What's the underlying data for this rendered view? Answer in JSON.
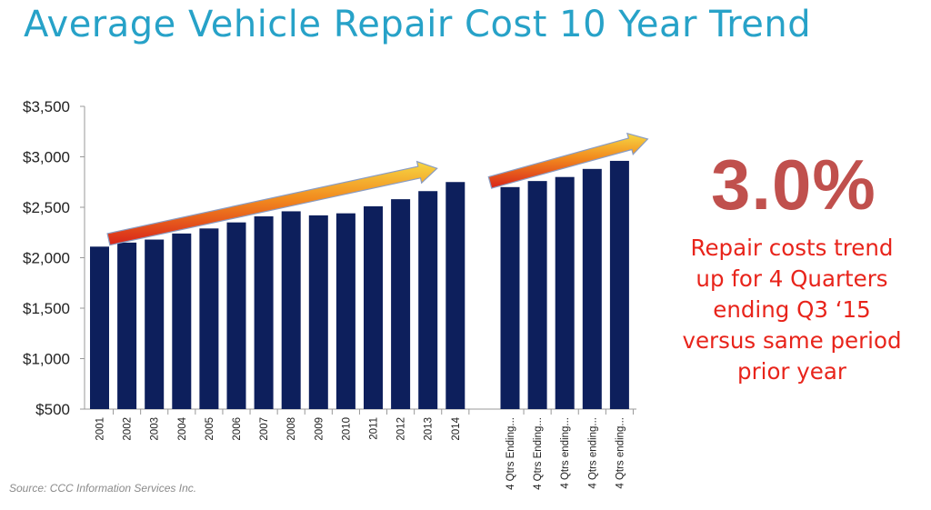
{
  "title": "Average Vehicle Repair Cost 10 Year Trend",
  "colors": {
    "title": "#27a2c8",
    "bar": "#0d1f5c",
    "stat": "#c0504d",
    "caption": "#e8241b",
    "axis": "#999999"
  },
  "chart_data": {
    "type": "bar",
    "title": "Average Vehicle Repair Cost 10 Year Trend",
    "xlabel": "",
    "ylabel": "",
    "ylim": [
      500,
      3500
    ],
    "yticks": [
      "$500",
      "$1,000",
      "$1,500",
      "$2,000",
      "$2,500",
      "$3,000",
      "$3,500"
    ],
    "ytick_values": [
      500,
      1000,
      1500,
      2000,
      2500,
      3000,
      3500
    ],
    "groups": [
      {
        "name": "annual",
        "categories": [
          "2001",
          "2002",
          "2003",
          "2004",
          "2005",
          "2006",
          "2007",
          "2008",
          "2009",
          "2010",
          "2011",
          "2012",
          "2013",
          "2014"
        ],
        "values": [
          2110,
          2150,
          2180,
          2240,
          2290,
          2350,
          2410,
          2460,
          2420,
          2440,
          2510,
          2580,
          2660,
          2750
        ]
      },
      {
        "name": "quarterly",
        "categories": [
          "4 Qtrs Ending...",
          "4 Qtrs Ending...",
          "4 Qtrs ending...",
          "4 Qtrs ending...",
          "4 Qtrs ending..."
        ],
        "values": [
          2700,
          2760,
          2800,
          2880,
          2960
        ]
      }
    ],
    "annotations": [
      "upward trend arrow over annual bars",
      "upward trend arrow over quarterly bars"
    ]
  },
  "highlight": {
    "stat": "3.0%",
    "caption_lines": [
      "Repair costs trend",
      "up for 4 Quarters",
      "ending Q3 ‘15",
      "versus same period",
      "prior year"
    ]
  },
  "source": "Source: CCC Information Services Inc."
}
